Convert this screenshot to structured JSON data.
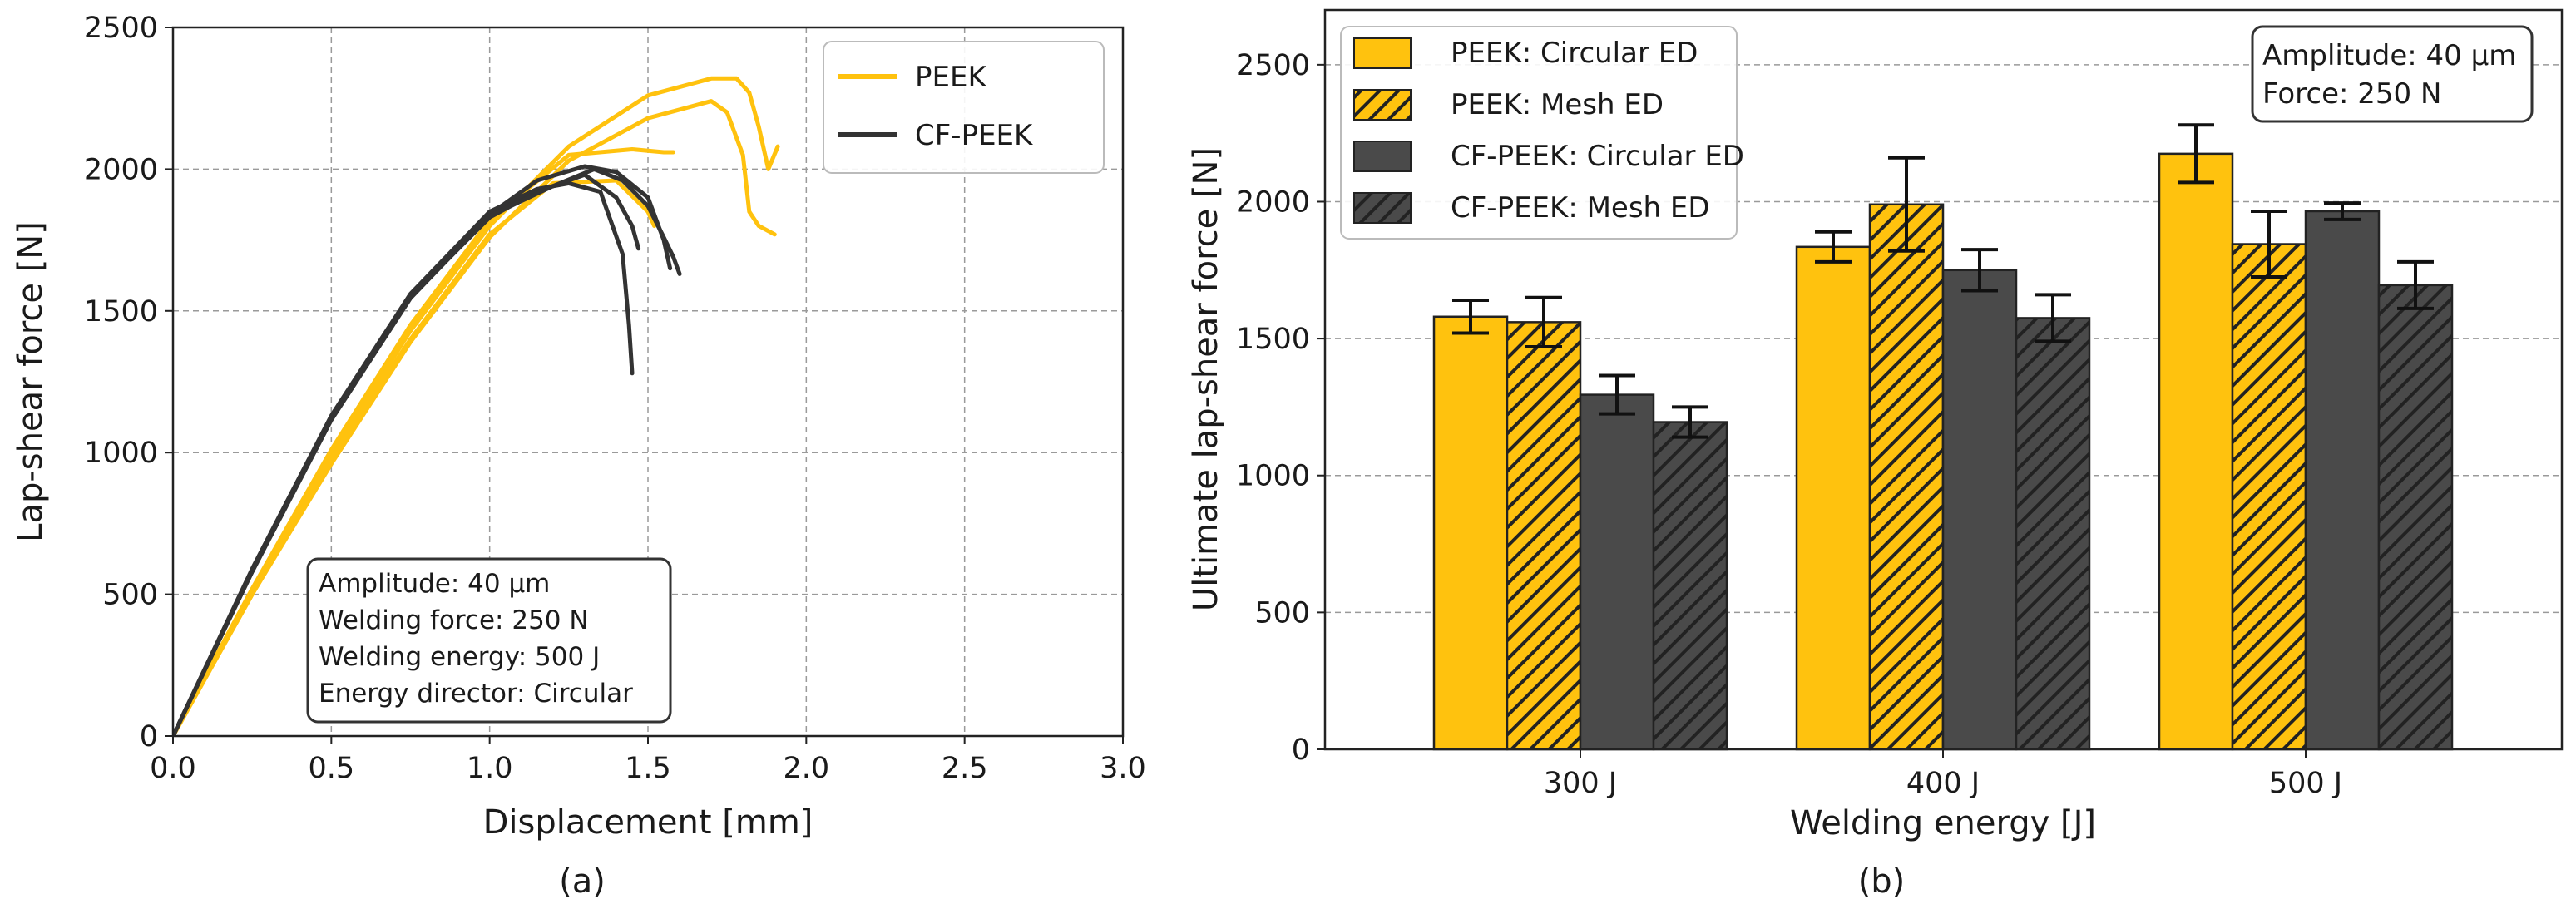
{
  "chart_data": [
    {
      "type": "line",
      "panel_label": "(a)",
      "xlabel": "Displacement [mm]",
      "ylabel": "Lap-shear force [N]",
      "xlim": [
        0,
        3.0
      ],
      "ylim": [
        0,
        2500
      ],
      "xticks": [
        "0.0",
        "0.5",
        "1.0",
        "1.5",
        "2.0",
        "2.5",
        "3.0"
      ],
      "yticks": [
        "0",
        "500",
        "1000",
        "1500",
        "2000",
        "2500"
      ],
      "grid": true,
      "legend_position": "top-right",
      "legend": [
        "PEEK",
        "CF-PEEK"
      ],
      "colors": {
        "PEEK": "#FFC20E",
        "CF-PEEK": "#333333"
      },
      "annotation": [
        "Amplitude: 40 μm",
        "Welding force: 250 N",
        "Welding energy: 500 J",
        "Energy director: Circular"
      ],
      "series": [
        {
          "name": "PEEK",
          "x": [
            0,
            0.25,
            0.5,
            0.75,
            1.0,
            1.25,
            1.5,
            1.7,
            1.78,
            1.82,
            1.85,
            1.88,
            1.91
          ],
          "y": [
            0,
            510,
            990,
            1430,
            1800,
            2080,
            2260,
            2320,
            2320,
            2270,
            2150,
            2000,
            2080
          ]
        },
        {
          "name": "PEEK",
          "x": [
            0,
            0.25,
            0.5,
            0.75,
            1.0,
            1.25,
            1.5,
            1.7,
            1.75,
            1.8,
            1.82,
            1.85,
            1.9
          ],
          "y": [
            0,
            500,
            960,
            1390,
            1760,
            2030,
            2180,
            2240,
            2200,
            2050,
            1850,
            1800,
            1770
          ]
        },
        {
          "name": "PEEK",
          "x": [
            0,
            0.25,
            0.5,
            0.75,
            1.0,
            1.25,
            1.45,
            1.55,
            1.58
          ],
          "y": [
            0,
            520,
            1010,
            1450,
            1820,
            2050,
            2070,
            2060,
            2060
          ]
        },
        {
          "name": "PEEK",
          "x": [
            0,
            0.25,
            0.5,
            0.75,
            1.0,
            1.2,
            1.4,
            1.5,
            1.52
          ],
          "y": [
            0,
            500,
            980,
            1400,
            1770,
            1950,
            1960,
            1850,
            1800
          ]
        },
        {
          "name": "CF-PEEK",
          "x": [
            0,
            0.25,
            0.5,
            0.75,
            1.0,
            1.15,
            1.25,
            1.35,
            1.42,
            1.44,
            1.45
          ],
          "y": [
            0,
            590,
            1130,
            1560,
            1850,
            1930,
            1950,
            1920,
            1700,
            1450,
            1280
          ]
        },
        {
          "name": "CF-PEEK",
          "x": [
            0,
            0.25,
            0.5,
            0.75,
            1.0,
            1.15,
            1.3,
            1.4,
            1.45,
            1.47
          ],
          "y": [
            0,
            580,
            1120,
            1550,
            1830,
            1920,
            1980,
            1900,
            1800,
            1720
          ]
        },
        {
          "name": "CF-PEEK",
          "x": [
            0,
            0.25,
            0.5,
            0.75,
            1.0,
            1.15,
            1.3,
            1.4,
            1.5,
            1.55,
            1.57
          ],
          "y": [
            0,
            585,
            1125,
            1555,
            1840,
            1960,
            2010,
            1990,
            1900,
            1750,
            1650
          ]
        },
        {
          "name": "CF-PEEK",
          "x": [
            0,
            0.25,
            0.5,
            0.75,
            1.0,
            1.2,
            1.33,
            1.42,
            1.5,
            1.55,
            1.58,
            1.6
          ],
          "y": [
            0,
            580,
            1115,
            1545,
            1835,
            1940,
            2000,
            1960,
            1870,
            1760,
            1690,
            1630
          ]
        }
      ]
    },
    {
      "type": "bar",
      "panel_label": "(b)",
      "xlabel": "Welding energy [J]",
      "ylabel": "Ultimate lap-shear force [N]",
      "ylim": [
        0,
        2700
      ],
      "yticks": [
        "0",
        "500",
        "1000",
        "1500",
        "2000",
        "2500"
      ],
      "categories": [
        "300 J",
        "400 J",
        "500 J"
      ],
      "grid": true,
      "legend_position": "top-left",
      "annotation": [
        "Amplitude: 40 μm",
        "Force: 250 N"
      ],
      "series": [
        {
          "name": "PEEK: Circular ED",
          "color": "#FFC20E",
          "hatch": false,
          "values": [
            1580,
            1835,
            2175
          ],
          "errors": [
            60,
            55,
            105
          ]
        },
        {
          "name": "PEEK: Mesh ED",
          "color": "#FFC20E",
          "hatch": true,
          "values": [
            1560,
            1990,
            1845
          ],
          "errors": [
            90,
            170,
            120
          ]
        },
        {
          "name": "CF-PEEK: Circular ED",
          "color": "#4a4a4a",
          "hatch": false,
          "values": [
            1295,
            1750,
            1965
          ],
          "errors": [
            70,
            75,
            30
          ]
        },
        {
          "name": "CF-PEEK: Mesh ED",
          "color": "#4a4a4a",
          "hatch": true,
          "values": [
            1195,
            1575,
            1695
          ],
          "errors": [
            55,
            85,
            85
          ]
        }
      ]
    }
  ]
}
